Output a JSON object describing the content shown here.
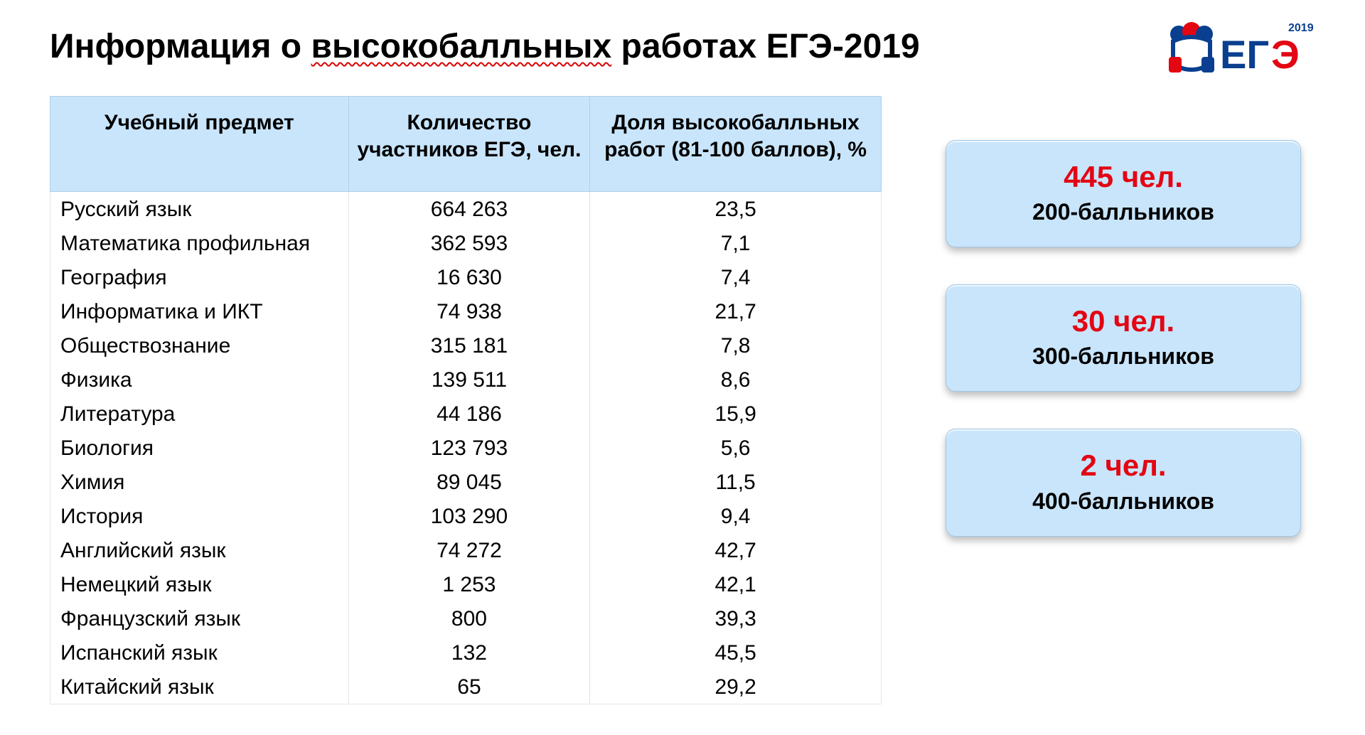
{
  "title_pre": "Информация о ",
  "title_under": "высокобалльных",
  "title_post": " работах ЕГЭ-2019",
  "logo": {
    "year": "2019",
    "text1": "ЕГ",
    "text2": "Э",
    "color_blue": "#0a3f8f",
    "color_red": "#e30613"
  },
  "table": {
    "header_bg": "#c9e5fb",
    "columns": [
      "Учебный предмет",
      "Количество участников ЕГЭ, чел.",
      "Доля высокобалльных работ (81-100 баллов), %"
    ],
    "rows": [
      {
        "subject": "Русский язык",
        "count": "664 263",
        "share": "23,5"
      },
      {
        "subject": "Математика профильная",
        "count": "362 593",
        "share": "7,1"
      },
      {
        "subject": "География",
        "count": "16 630",
        "share": "7,4"
      },
      {
        "subject": "Информатика и ИКТ",
        "count": "74 938",
        "share": "21,7"
      },
      {
        "subject": "Обществознание",
        "count": "315 181",
        "share": "7,8"
      },
      {
        "subject": "Физика",
        "count": "139 511",
        "share": "8,6"
      },
      {
        "subject": "Литература",
        "count": "44 186",
        "share": "15,9"
      },
      {
        "subject": "Биология",
        "count": "123 793",
        "share": "5,6"
      },
      {
        "subject": "Химия",
        "count": "89 045",
        "share": "11,5"
      },
      {
        "subject": "История",
        "count": "103 290",
        "share": "9,4"
      },
      {
        "subject": "Английский язык",
        "count": "74 272",
        "share": "42,7"
      },
      {
        "subject": "Немецкий язык",
        "count": "1 253",
        "share": "42,1"
      },
      {
        "subject": "Французский язык",
        "count": "800",
        "share": "39,3"
      },
      {
        "subject": "Испанский язык",
        "count": "132",
        "share": "45,5"
      },
      {
        "subject": "Китайский язык",
        "count": "65",
        "share": "29,2"
      }
    ]
  },
  "badges": [
    {
      "big": "445 чел.",
      "sub": "200-балльников"
    },
    {
      "big": "30 чел.",
      "sub": "300-балльников"
    },
    {
      "big": "2 чел.",
      "sub": "400-балльников"
    }
  ],
  "colors": {
    "accent_red": "#e30613",
    "badge_bg": "#c9e5fb"
  }
}
